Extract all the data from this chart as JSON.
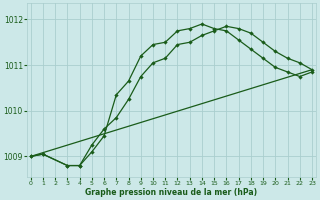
{
  "xlabel": "Graphe pression niveau de la mer (hPa)",
  "bg_color": "#cce8e8",
  "grid_color": "#aacece",
  "line_color": "#1a5c1a",
  "x_ticks": [
    0,
    1,
    2,
    3,
    4,
    5,
    6,
    7,
    8,
    9,
    10,
    11,
    12,
    13,
    14,
    15,
    16,
    17,
    18,
    19,
    20,
    21,
    22,
    23
  ],
  "y_ticks": [
    1009,
    1010,
    1011,
    1012
  ],
  "ylim": [
    1008.55,
    1012.35
  ],
  "xlim": [
    -0.3,
    23.3
  ],
  "line1_x": [
    0,
    1,
    3,
    4,
    5,
    6,
    7,
    8,
    9,
    10,
    11,
    12,
    13,
    14,
    15,
    16,
    17,
    18,
    19,
    20,
    21,
    22,
    23
  ],
  "line1_y": [
    1009.0,
    1009.05,
    1008.8,
    1008.8,
    1009.25,
    1009.6,
    1009.85,
    1010.25,
    1010.75,
    1011.05,
    1011.15,
    1011.45,
    1011.5,
    1011.65,
    1011.75,
    1011.85,
    1011.8,
    1011.7,
    1011.5,
    1011.3,
    1011.15,
    1011.05,
    1010.9
  ],
  "line2_x": [
    0,
    1,
    3,
    4,
    5,
    6,
    7,
    8,
    9,
    10,
    11,
    12,
    13,
    14,
    15,
    16,
    17,
    18,
    19,
    20,
    21,
    22,
    23
  ],
  "line2_y": [
    1009.0,
    1009.05,
    1008.8,
    1008.8,
    1009.1,
    1009.45,
    1010.35,
    1010.65,
    1011.2,
    1011.45,
    1011.5,
    1011.75,
    1011.8,
    1011.9,
    1011.8,
    1011.75,
    1011.55,
    1011.35,
    1011.15,
    1010.95,
    1010.85,
    1010.75,
    1010.85
  ],
  "line3_x": [
    0,
    23
  ],
  "line3_y": [
    1009.0,
    1010.9
  ]
}
